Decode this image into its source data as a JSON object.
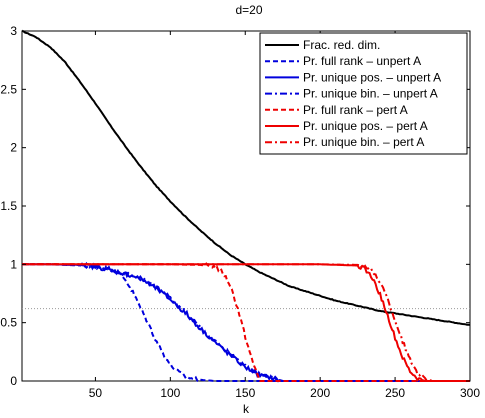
{
  "chart_data": {
    "type": "line",
    "title": "d=20",
    "xlabel": "k",
    "ylabel": "",
    "xlim": [
      1,
      300
    ],
    "ylim": [
      0,
      3
    ],
    "xticks": [
      50,
      100,
      150,
      200,
      250,
      300
    ],
    "yticks": [
      0,
      0.5,
      1,
      1.5,
      2,
      2.5,
      3
    ],
    "xtick_labels": [
      "50",
      "100",
      "150",
      "200",
      "250",
      "300"
    ],
    "ytick_labels": [
      "0",
      "0.5",
      "1",
      "1.5",
      "2",
      "2.5",
      "3"
    ],
    "grid": false,
    "legend_position": "top-right",
    "reference_line": {
      "y": 0.62,
      "style": "dotted",
      "color": "#999999"
    },
    "series": [
      {
        "name": "Frac. red. dim.",
        "color": "#000000",
        "dash": "solid",
        "x": [
          1,
          10,
          20,
          30,
          40,
          50,
          60,
          70,
          80,
          90,
          100,
          110,
          120,
          130,
          140,
          150,
          160,
          170,
          180,
          190,
          200,
          210,
          220,
          230,
          240,
          250,
          260,
          270,
          280,
          290,
          300
        ],
        "y": [
          3.0,
          2.95,
          2.86,
          2.73,
          2.56,
          2.38,
          2.19,
          2.01,
          1.84,
          1.68,
          1.54,
          1.41,
          1.29,
          1.18,
          1.08,
          1.0,
          0.93,
          0.87,
          0.81,
          0.77,
          0.73,
          0.69,
          0.66,
          0.63,
          0.6,
          0.58,
          0.56,
          0.54,
          0.52,
          0.5,
          0.48
        ]
      },
      {
        "name": "Pr. full rank – unpert A",
        "color": "#0000dd",
        "dash": "dashed",
        "x": [
          1,
          20,
          40,
          50,
          60,
          65,
          70,
          75,
          80,
          85,
          90,
          95,
          100,
          105,
          110,
          115,
          120,
          130,
          300
        ],
        "y": [
          1,
          1,
          0.99,
          0.98,
          0.96,
          0.93,
          0.87,
          0.76,
          0.63,
          0.5,
          0.36,
          0.24,
          0.14,
          0.08,
          0.04,
          0.02,
          0.01,
          0,
          0
        ]
      },
      {
        "name": "Pr. unique pos. – unpert A",
        "color": "#0000dd",
        "dash": "solid",
        "x": [
          1,
          20,
          40,
          50,
          60,
          70,
          80,
          90,
          100,
          110,
          120,
          130,
          140,
          150,
          160,
          170,
          175,
          300
        ],
        "y": [
          1,
          1,
          0.995,
          0.98,
          0.95,
          0.92,
          0.88,
          0.8,
          0.7,
          0.58,
          0.45,
          0.33,
          0.22,
          0.12,
          0.05,
          0.02,
          0,
          0
        ]
      },
      {
        "name": "Pr. unique bin. – unpert A",
        "color": "#0000dd",
        "dash": "dashdot",
        "x": [
          1,
          20,
          40,
          50,
          60,
          70,
          80,
          90,
          100,
          110,
          120,
          130,
          140,
          150,
          160,
          170,
          175,
          300
        ],
        "y": [
          1,
          1,
          0.995,
          0.98,
          0.95,
          0.92,
          0.88,
          0.81,
          0.71,
          0.59,
          0.46,
          0.34,
          0.23,
          0.13,
          0.06,
          0.02,
          0,
          0
        ]
      },
      {
        "name": "Pr. full rank – pert A",
        "color": "#ee0000",
        "dash": "dashed",
        "x": [
          1,
          100,
          120,
          130,
          135,
          140,
          145,
          150,
          155,
          160,
          300
        ],
        "y": [
          1,
          1,
          0.995,
          0.98,
          0.93,
          0.82,
          0.62,
          0.38,
          0.16,
          0,
          0
        ]
      },
      {
        "name": "Pr. unique pos. – pert A",
        "color": "#ee0000",
        "dash": "solid",
        "x": [
          1,
          200,
          225,
          230,
          235,
          240,
          245,
          250,
          255,
          260,
          265,
          270,
          300
        ],
        "y": [
          1,
          1,
          0.99,
          0.96,
          0.88,
          0.74,
          0.56,
          0.37,
          0.2,
          0.08,
          0.02,
          0,
          0
        ]
      },
      {
        "name": "Pr. unique bin. – pert A",
        "color": "#ee0000",
        "dash": "dashdot",
        "x": [
          1,
          200,
          225,
          230,
          235,
          240,
          245,
          250,
          255,
          260,
          265,
          270,
          275,
          300
        ],
        "y": [
          1,
          1,
          0.995,
          0.98,
          0.94,
          0.85,
          0.7,
          0.52,
          0.34,
          0.18,
          0.07,
          0.02,
          0,
          0
        ]
      }
    ]
  }
}
